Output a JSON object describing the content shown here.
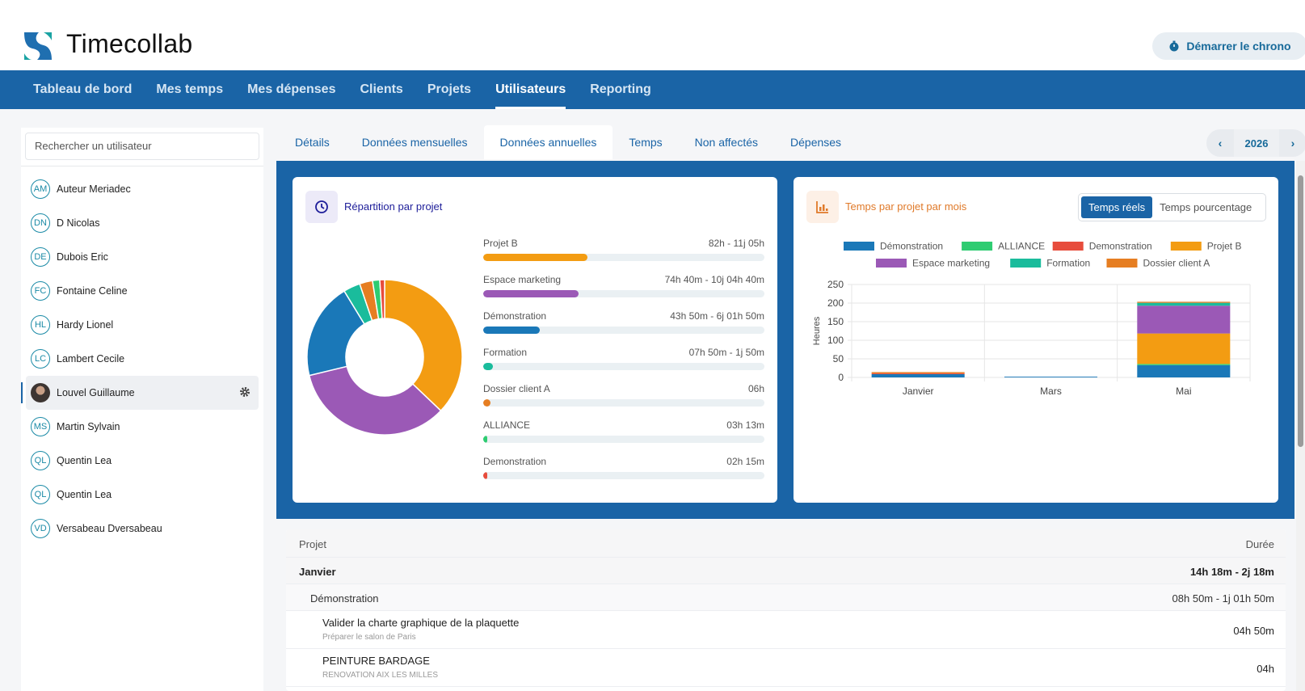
{
  "app": {
    "brand": "Timecollab",
    "chrono_label": "Démarrer le chrono"
  },
  "nav": [
    "Tableau de bord",
    "Mes temps",
    "Mes dépenses",
    "Clients",
    "Projets",
    "Utilisateurs",
    "Reporting"
  ],
  "sidebar": {
    "search_placeholder": "Rechercher un utilisateur",
    "users": [
      {
        "initials": "AM",
        "name": "Auteur Meriadec"
      },
      {
        "initials": "DN",
        "name": "D Nicolas"
      },
      {
        "initials": "DE",
        "name": "Dubois Eric"
      },
      {
        "initials": "FC",
        "name": "Fontaine Celine"
      },
      {
        "initials": "HL",
        "name": "Hardy Lionel"
      },
      {
        "initials": "LC",
        "name": "Lambert Cecile"
      },
      {
        "initials": "",
        "name": "Louvel Guillaume",
        "active": true
      },
      {
        "initials": "MS",
        "name": "Martin Sylvain"
      },
      {
        "initials": "QL",
        "name": "Quentin Lea"
      },
      {
        "initials": "QL",
        "name": "Quentin Lea"
      },
      {
        "initials": "VD",
        "name": "Versabeau Dversabeau"
      }
    ]
  },
  "tabs": [
    "Détails",
    "Données mensuelles",
    "Données annuelles",
    "Temps",
    "Non affectés",
    "Dépenses"
  ],
  "active_tab": 2,
  "year": "2026",
  "card1": {
    "title": "Répartition par projet",
    "projects": [
      {
        "name": "Projet B",
        "value": "82h - 11j 05h",
        "fraction": 0.37,
        "color": "#f39c12"
      },
      {
        "name": "Espace marketing",
        "value": "74h 40m - 10j 04h 40m",
        "fraction": 0.34,
        "color": "#9b59b6"
      },
      {
        "name": "Démonstration",
        "value": "43h 50m - 6j 01h 50m",
        "fraction": 0.2,
        "color": "#1a78b8"
      },
      {
        "name": "Formation",
        "value": "07h 50m - 1j 50m",
        "fraction": 0.035,
        "color": "#1abc9c"
      },
      {
        "name": "Dossier client A",
        "value": "06h",
        "fraction": 0.027,
        "color": "#e67e22"
      },
      {
        "name": "ALLIANCE",
        "value": "03h 13m",
        "fraction": 0.015,
        "color": "#2ecc71"
      },
      {
        "name": "Demonstration",
        "value": "02h 15m",
        "fraction": 0.01,
        "color": "#e74c3c"
      }
    ]
  },
  "card2": {
    "title": "Temps par projet par mois",
    "toggle": [
      "Temps réels",
      "Temps pourcentage"
    ]
  },
  "chart_data": {
    "type": "bar",
    "stacked": true,
    "categories": [
      "Janvier",
      "Mars",
      "Mai"
    ],
    "ylabel": "Heures",
    "ylim": [
      0,
      250
    ],
    "yticks": [
      0,
      50,
      100,
      150,
      200,
      250
    ],
    "grid": true,
    "legend": "top",
    "series": [
      {
        "name": "Démonstration",
        "color": "#1a78b8",
        "values": [
          8.8,
          2,
          33
        ]
      },
      {
        "name": "ALLIANCE",
        "color": "#2ecc71",
        "values": [
          0,
          0,
          3.2
        ]
      },
      {
        "name": "Demonstration",
        "color": "#e74c3c",
        "values": [
          2.3,
          0,
          0
        ]
      },
      {
        "name": "Projet B",
        "color": "#f39c12",
        "values": [
          0,
          0,
          82
        ]
      },
      {
        "name": "Espace marketing",
        "color": "#9b59b6",
        "values": [
          0,
          0,
          74.7
        ]
      },
      {
        "name": "Formation",
        "color": "#1abc9c",
        "values": [
          0,
          0,
          7.8
        ]
      },
      {
        "name": "Dossier client A",
        "color": "#e67e22",
        "values": [
          3.2,
          0,
          2.8
        ]
      }
    ]
  },
  "table": {
    "header": {
      "project": "Projet",
      "duration": "Durée"
    },
    "month": {
      "name": "Janvier",
      "total": "14h 18m - 2j 18m"
    },
    "project": {
      "name": "Démonstration",
      "total": "08h 50m - 1j 01h 50m"
    },
    "tasks": [
      {
        "name": "Valider la charte graphique de la plaquette",
        "sub": "Préparer le salon de Paris",
        "duration": "04h 50m"
      },
      {
        "name": "PEINTURE BARDAGE",
        "sub": "RENOVATION AIX LES MILLES",
        "duration": "04h"
      }
    ]
  }
}
